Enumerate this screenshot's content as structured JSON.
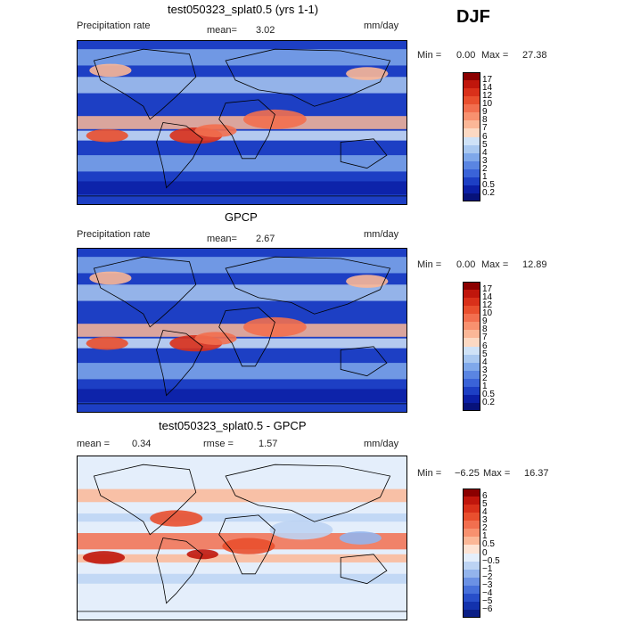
{
  "season": "DJF",
  "chart_data": [
    {
      "type": "heatmap",
      "title": "test050323_splat0.5 (yrs 1-1)",
      "variable_label": "Precipitation rate",
      "units": "mm/day",
      "stats": {
        "mean_label": "mean=",
        "mean": "3.02",
        "min_label": "Min =",
        "min": "0.00",
        "max_label": "Max =",
        "max": "27.38"
      },
      "colorbar": {
        "levels": [
          "17",
          "14",
          "12",
          "10",
          "9",
          "8",
          "7",
          "6",
          "5",
          "4",
          "3",
          "2",
          "1",
          "0.5",
          "0.2"
        ],
        "colors": [
          "#8b0000",
          "#c0160c",
          "#d9301a",
          "#e94f2e",
          "#f26f4f",
          "#f8916f",
          "#fbb797",
          "#fcd9c3",
          "#cfe2f7",
          "#a9c8f0",
          "#7fa8ea",
          "#5a85e2",
          "#3a63d8",
          "#1d3fc4",
          "#0b1fa6",
          "#07127a"
        ]
      },
      "regions": {
        "itcz": "strong",
        "warm_pool": "strong",
        "south_america": "strong",
        "africa": "moderate"
      }
    },
    {
      "type": "heatmap",
      "title": "GPCP",
      "variable_label": "Precipitation rate",
      "units": "mm/day",
      "stats": {
        "mean_label": "mean=",
        "mean": "2.67",
        "min_label": "Min =",
        "min": "0.00",
        "max_label": "Max =",
        "max": "12.89"
      },
      "colorbar": {
        "levels": [
          "17",
          "14",
          "12",
          "10",
          "9",
          "8",
          "7",
          "6",
          "5",
          "4",
          "3",
          "2",
          "1",
          "0.5",
          "0.2"
        ],
        "colors": [
          "#8b0000",
          "#c0160c",
          "#d9301a",
          "#e94f2e",
          "#f26f4f",
          "#f8916f",
          "#fbb797",
          "#fcd9c3",
          "#cfe2f7",
          "#a9c8f0",
          "#7fa8ea",
          "#5a85e2",
          "#3a63d8",
          "#1d3fc4",
          "#0b1fa6",
          "#07127a"
        ]
      },
      "regions": {
        "itcz": "moderate",
        "warm_pool": "moderate",
        "south_america": "moderate",
        "africa": "weak"
      }
    },
    {
      "type": "heatmap",
      "title": "test050323_splat0.5 - GPCP",
      "units": "mm/day",
      "stats": {
        "mean_label": "mean =",
        "mean": "0.34",
        "rmse_label": "rmse =",
        "rmse": "1.57",
        "min_label": "Min =",
        "min": "−6.25",
        "max_label": "Max =",
        "max": "16.37"
      },
      "colorbar": {
        "levels": [
          "6",
          "5",
          "4",
          "3",
          "2",
          "1",
          "0.5",
          "0",
          "−0.5",
          "−1",
          "−2",
          "−3",
          "−4",
          "−5",
          "−6"
        ],
        "colors": [
          "#8b0000",
          "#c0160c",
          "#d9301a",
          "#e94f2e",
          "#f26f4f",
          "#f8916f",
          "#fbb797",
          "#fde3d4",
          "#e4eefb",
          "#bcd3f3",
          "#93b4ec",
          "#6b91e4",
          "#4770da",
          "#284ec9",
          "#1332ad",
          "#0b1f86"
        ]
      }
    }
  ]
}
